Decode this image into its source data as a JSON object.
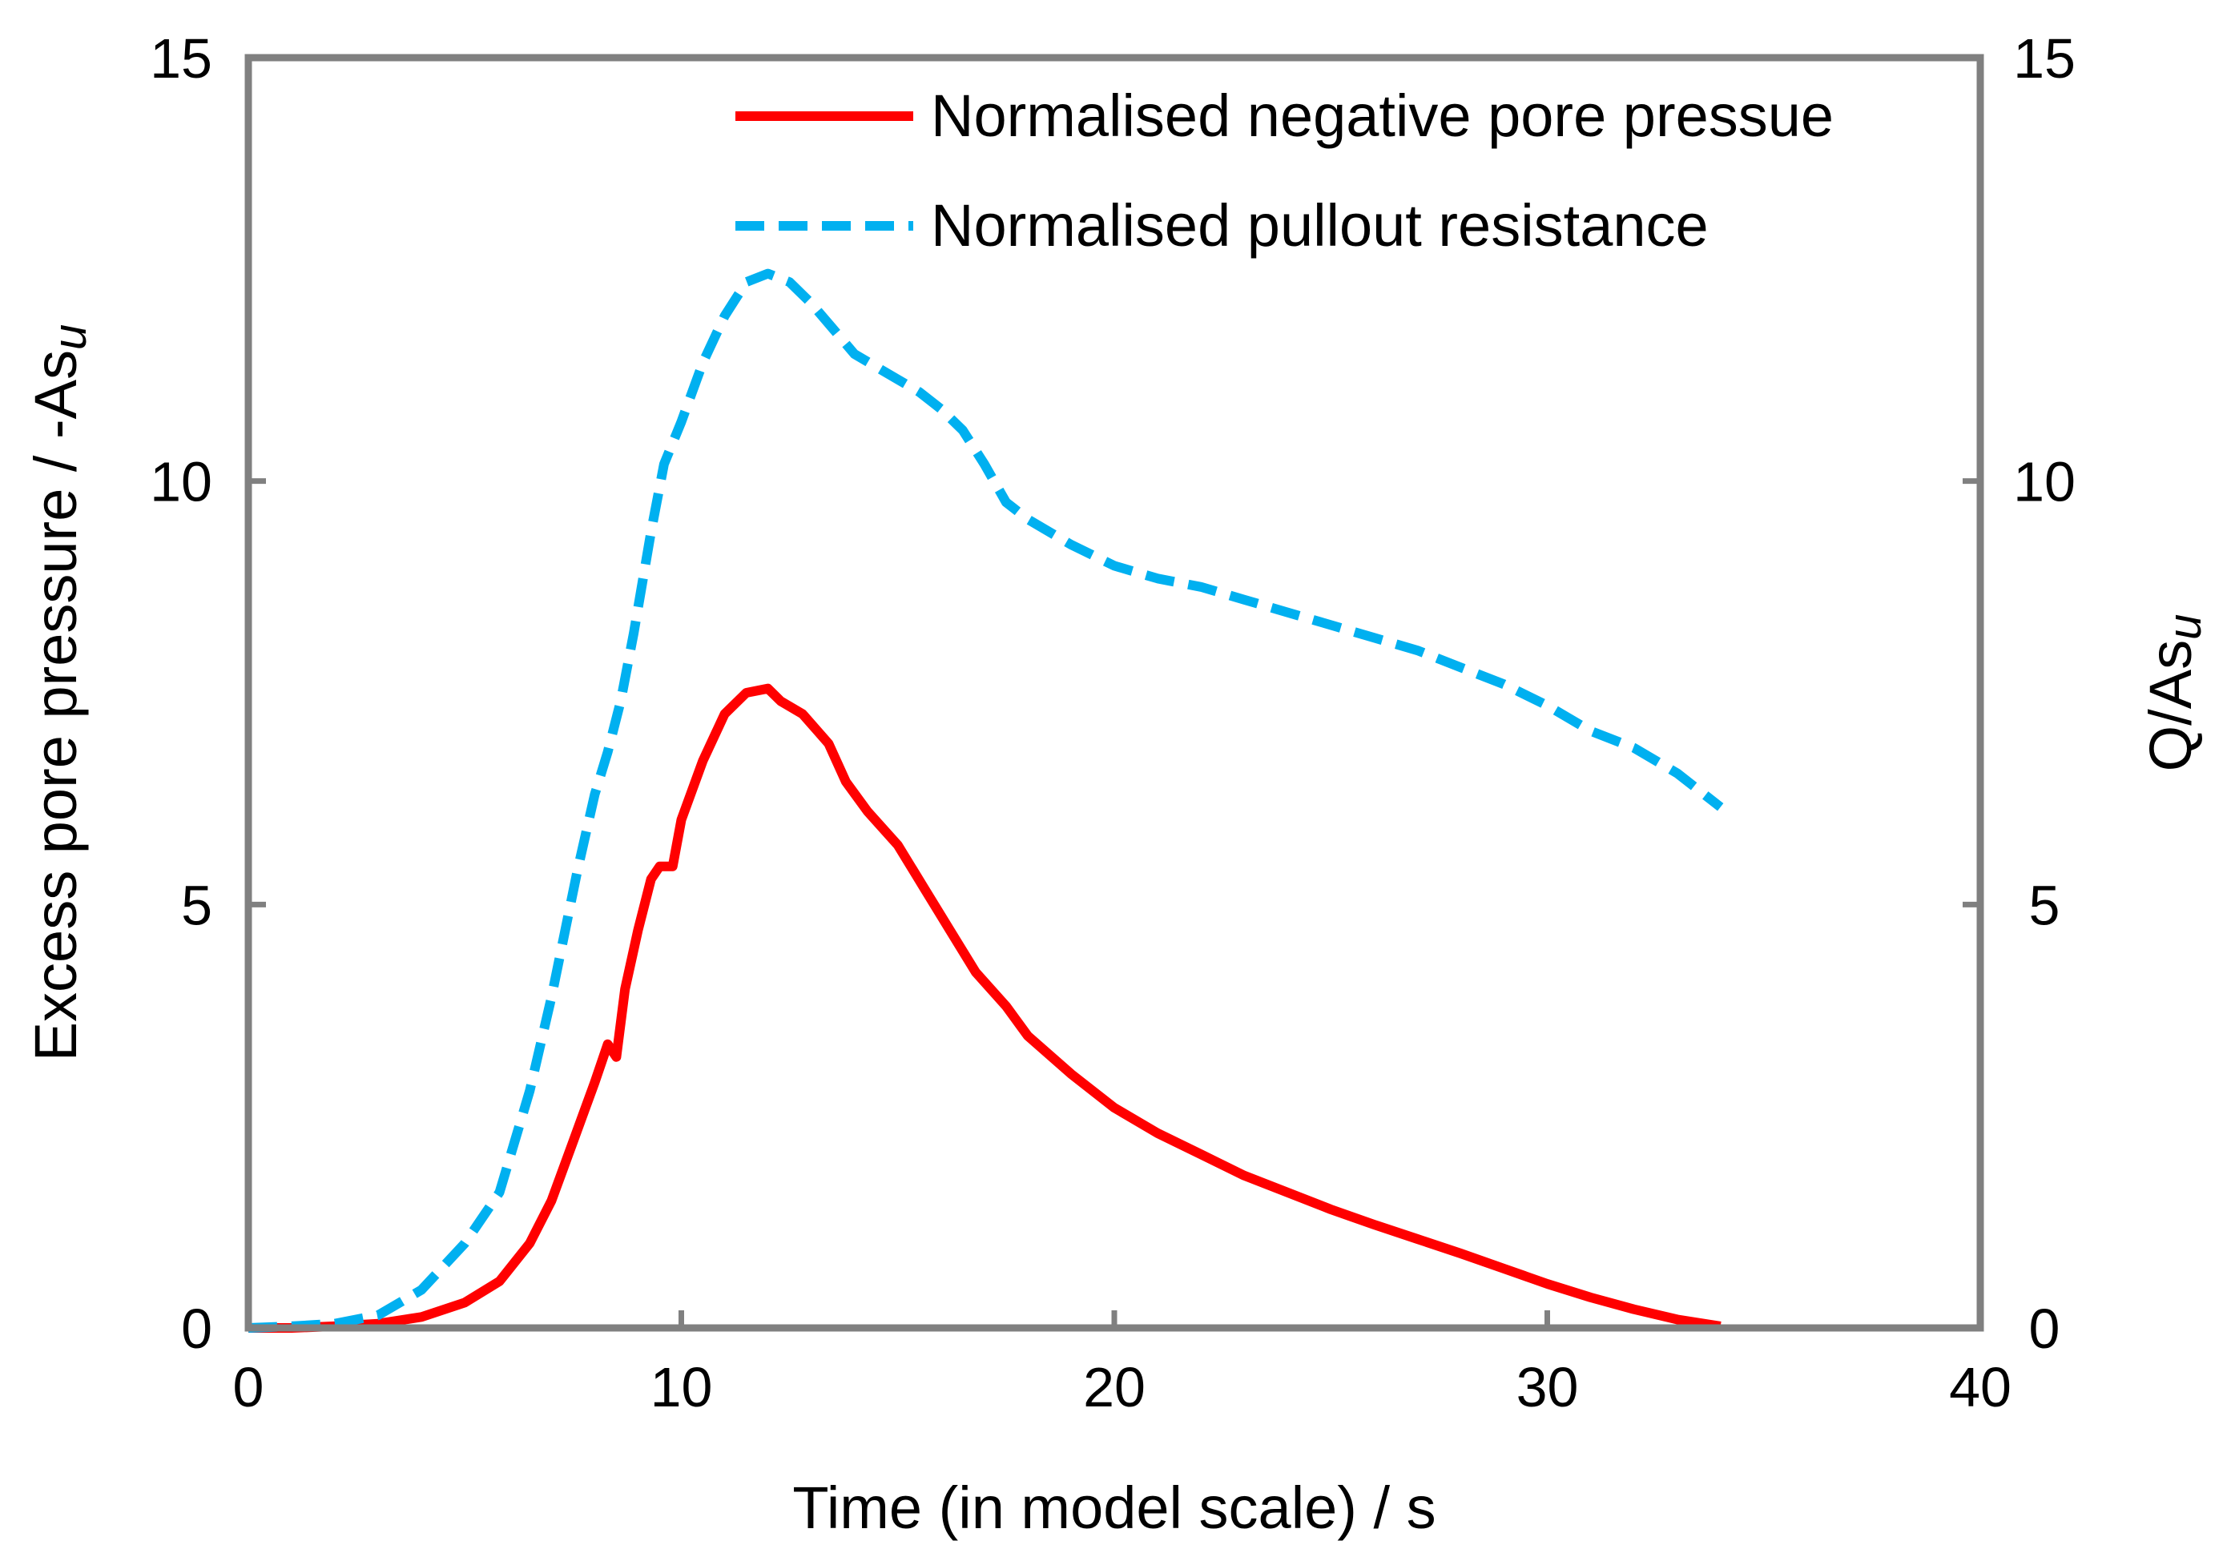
{
  "chart_data": {
    "type": "line",
    "xlabel": "Time (in model scale) / s",
    "ylabel_left": {
      "main": "Excess pore pressure / -As",
      "sub": "u"
    },
    "ylabel_right": {
      "main": "Q/As",
      "sub": "u"
    },
    "xlim": [
      0,
      40
    ],
    "ylim_left": [
      0,
      15
    ],
    "ylim_right": [
      0,
      15
    ],
    "x_ticks": [
      0,
      10,
      20,
      30,
      40
    ],
    "y_ticks": [
      0,
      5,
      10,
      15
    ],
    "x_tick_labels": [
      "0",
      "10",
      "20",
      "30",
      "40"
    ],
    "y_tick_labels": [
      "0",
      "5",
      "10",
      "15"
    ],
    "grid": false,
    "legend_position": "top-right",
    "series": [
      {
        "name": "Normalised negative pore pressue",
        "color": "#ff0000",
        "style": "solid",
        "axis": "left",
        "points": [
          [
            0,
            0
          ],
          [
            1,
            0
          ],
          [
            2,
            0.02
          ],
          [
            3,
            0.05
          ],
          [
            4,
            0.13
          ],
          [
            5,
            0.3
          ],
          [
            5.8,
            0.55
          ],
          [
            6.5,
            1.0
          ],
          [
            7,
            1.5
          ],
          [
            7.5,
            2.2
          ],
          [
            8,
            2.9
          ],
          [
            8.3,
            3.35
          ],
          [
            8.5,
            3.2
          ],
          [
            8.7,
            4.0
          ],
          [
            9,
            4.7
          ],
          [
            9.3,
            5.3
          ],
          [
            9.5,
            5.45
          ],
          [
            9.8,
            5.45
          ],
          [
            10,
            6.0
          ],
          [
            10.5,
            6.7
          ],
          [
            11,
            7.25
          ],
          [
            11.5,
            7.5
          ],
          [
            12,
            7.55
          ],
          [
            12.3,
            7.4
          ],
          [
            12.8,
            7.25
          ],
          [
            13.4,
            6.9
          ],
          [
            13.8,
            6.45
          ],
          [
            14.3,
            6.1
          ],
          [
            15,
            5.7
          ],
          [
            15.6,
            5.2
          ],
          [
            16.2,
            4.7
          ],
          [
            16.8,
            4.2
          ],
          [
            17.5,
            3.8
          ],
          [
            18,
            3.45
          ],
          [
            19,
            3.0
          ],
          [
            20,
            2.6
          ],
          [
            21,
            2.3
          ],
          [
            22,
            2.05
          ],
          [
            23,
            1.8
          ],
          [
            24,
            1.6
          ],
          [
            25,
            1.4
          ],
          [
            26,
            1.22
          ],
          [
            27,
            1.05
          ],
          [
            28,
            0.88
          ],
          [
            29,
            0.7
          ],
          [
            30,
            0.52
          ],
          [
            31,
            0.36
          ],
          [
            32,
            0.22
          ],
          [
            33,
            0.1
          ],
          [
            34,
            0.02
          ]
        ]
      },
      {
        "name": "Normalised pullout resistance",
        "color": "#00b0f0",
        "style": "dashed",
        "axis": "right",
        "points": [
          [
            0,
            0
          ],
          [
            1,
            0.02
          ],
          [
            2,
            0.05
          ],
          [
            3,
            0.15
          ],
          [
            4,
            0.45
          ],
          [
            5,
            1.0
          ],
          [
            5.8,
            1.6
          ],
          [
            6.5,
            2.8
          ],
          [
            7,
            3.9
          ],
          [
            7.6,
            5.4
          ],
          [
            8,
            6.3
          ],
          [
            8.3,
            6.8
          ],
          [
            8.6,
            7.4
          ],
          [
            8.9,
            8.2
          ],
          [
            9.3,
            9.4
          ],
          [
            9.6,
            10.2
          ],
          [
            10,
            10.7
          ],
          [
            10.5,
            11.4
          ],
          [
            11,
            11.95
          ],
          [
            11.5,
            12.35
          ],
          [
            12,
            12.45
          ],
          [
            12.5,
            12.35
          ],
          [
            13,
            12.1
          ],
          [
            13.5,
            11.8
          ],
          [
            14,
            11.5
          ],
          [
            15,
            11.2
          ],
          [
            15.5,
            11.05
          ],
          [
            16,
            10.85
          ],
          [
            16.5,
            10.6
          ],
          [
            17,
            10.2
          ],
          [
            17.5,
            9.75
          ],
          [
            18,
            9.55
          ],
          [
            19,
            9.25
          ],
          [
            20,
            9.0
          ],
          [
            21,
            8.85
          ],
          [
            22,
            8.75
          ],
          [
            23,
            8.6
          ],
          [
            24,
            8.45
          ],
          [
            25,
            8.3
          ],
          [
            26,
            8.15
          ],
          [
            27,
            8.0
          ],
          [
            28,
            7.8
          ],
          [
            29,
            7.6
          ],
          [
            30,
            7.35
          ],
          [
            31,
            7.05
          ],
          [
            32,
            6.85
          ],
          [
            33,
            6.55
          ],
          [
            34,
            6.15
          ]
        ]
      }
    ]
  }
}
